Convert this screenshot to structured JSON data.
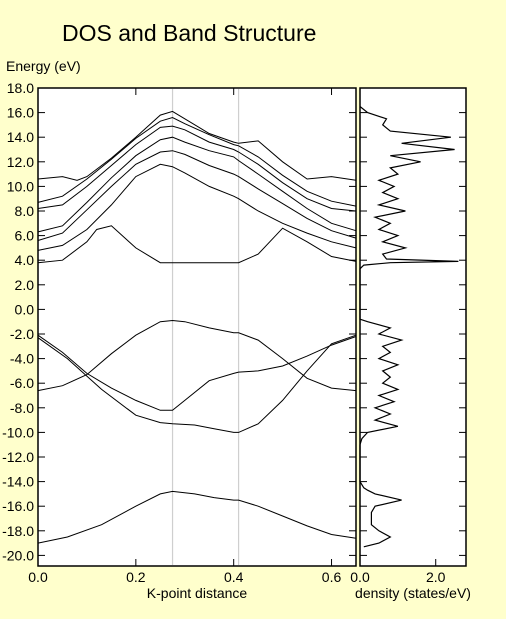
{
  "chart_data": [
    {
      "type": "line",
      "name": "band_structure",
      "title": "DOS and Band Structure",
      "ylabel": "Energy (eV)",
      "xlabel": "K-point distance",
      "xlim": [
        0.0,
        0.65
      ],
      "ylim": [
        -21.0,
        19.0
      ],
      "x_tick_labels": [
        "0.0",
        "0.2",
        "0.4",
        "0.6"
      ],
      "x_tick_values": [
        0.0,
        0.2,
        0.4,
        0.6
      ],
      "y_tick_labels": [
        "18.0",
        "16.0",
        "14.0",
        "12.0",
        "10.0",
        "8.0",
        "6.0",
        "4.0",
        "2.0",
        "0.0",
        "-2.0",
        "-4.0",
        "-6.0",
        "-8.0",
        "-10.0",
        "-12.0",
        "-14.0",
        "-16.0",
        "-18.0",
        "-20.0"
      ],
      "y_tick_values": [
        18,
        16,
        14,
        12,
        10,
        8,
        6,
        4,
        2,
        0,
        -2,
        -4,
        -6,
        -8,
        -10,
        -12,
        -14,
        -16,
        -18,
        -20
      ],
      "high_symmetry_x": [
        0.275,
        0.41
      ],
      "grid": false,
      "series": [
        {
          "x": [
            0,
            0.06,
            0.13,
            0.2,
            0.25,
            0.275,
            0.32,
            0.36,
            0.4,
            0.41,
            0.45,
            0.5,
            0.55,
            0.6,
            0.65
          ],
          "y": [
            -19,
            -18.5,
            -17.5,
            -16,
            -15,
            -14.8,
            -15,
            -15.3,
            -15.5,
            -15.5,
            -16,
            -16.8,
            -17.6,
            -18.3,
            -18.6
          ]
        },
        {
          "x": [
            0,
            0.06,
            0.13,
            0.2,
            0.25,
            0.275,
            0.32,
            0.36,
            0.4,
            0.41,
            0.45,
            0.5,
            0.55,
            0.6,
            0.65
          ],
          "y": [
            -2.3,
            -4,
            -6.5,
            -8.6,
            -9.2,
            -9.3,
            -9.4,
            -9.7,
            -10,
            -10,
            -9.3,
            -7.4,
            -5,
            -2.8,
            -2.1
          ]
        },
        {
          "x": [
            0,
            0.05,
            0.1,
            0.15,
            0.2,
            0.25,
            0.275,
            0.3,
            0.35,
            0.4,
            0.41,
            0.45,
            0.5,
            0.55,
            0.6,
            0.65
          ],
          "y": [
            -2.1,
            -3.5,
            -5.2,
            -6.4,
            -7.4,
            -8.2,
            -8.2,
            -7.4,
            -5.8,
            -5.2,
            -5.1,
            -5,
            -4.6,
            -3.8,
            -2.9,
            -2.2
          ]
        },
        {
          "x": [
            0,
            0.05,
            0.1,
            0.15,
            0.2,
            0.25,
            0.275,
            0.3,
            0.35,
            0.4,
            0.41,
            0.45,
            0.5,
            0.55,
            0.6,
            0.65
          ],
          "y": [
            -6.6,
            -6.2,
            -5.3,
            -3.6,
            -2.1,
            -1,
            -0.9,
            -1,
            -1.5,
            -1.9,
            -1.9,
            -2.5,
            -4,
            -5.6,
            -6.4,
            -6.6
          ]
        },
        {
          "x": [
            0,
            0.05,
            0.1,
            0.12,
            0.15,
            0.2,
            0.25,
            0.275,
            0.3,
            0.35,
            0.4,
            0.41,
            0.45,
            0.5,
            0.55,
            0.6,
            0.65
          ],
          "y": [
            3.8,
            4,
            5.5,
            6.5,
            6.8,
            5,
            3.8,
            3.8,
            3.8,
            3.8,
            3.8,
            3.8,
            4.5,
            6.6,
            5.5,
            4.3,
            3.9
          ]
        },
        {
          "x": [
            0,
            0.05,
            0.1,
            0.15,
            0.2,
            0.25,
            0.275,
            0.3,
            0.35,
            0.4,
            0.41,
            0.45,
            0.5,
            0.55,
            0.6,
            0.65
          ],
          "y": [
            4.8,
            5.2,
            6.5,
            8.5,
            10.8,
            11.8,
            11.6,
            11.1,
            10,
            9.2,
            9,
            8,
            7,
            6.2,
            5.5,
            5
          ]
        },
        {
          "x": [
            0,
            0.05,
            0.1,
            0.15,
            0.2,
            0.25,
            0.275,
            0.3,
            0.35,
            0.4,
            0.41,
            0.45,
            0.5,
            0.55,
            0.6,
            0.65
          ],
          "y": [
            5.6,
            6.2,
            8.1,
            10,
            11.8,
            12.8,
            12.9,
            12.6,
            11.7,
            11,
            10.8,
            9.8,
            8.6,
            7.4,
            6.4,
            5.8
          ]
        },
        {
          "x": [
            0,
            0.05,
            0.1,
            0.15,
            0.2,
            0.25,
            0.275,
            0.3,
            0.35,
            0.4,
            0.41,
            0.45,
            0.5,
            0.55,
            0.6,
            0.65
          ],
          "y": [
            6.3,
            6.8,
            8.7,
            10.7,
            12.5,
            13.8,
            14,
            13.6,
            12.9,
            12.4,
            12.1,
            11,
            9.6,
            8.2,
            7,
            6.4
          ]
        },
        {
          "x": [
            0,
            0.05,
            0.1,
            0.15,
            0.2,
            0.25,
            0.275,
            0.3,
            0.35,
            0.4,
            0.41,
            0.45,
            0.5,
            0.55,
            0.6,
            0.65
          ],
          "y": [
            8.2,
            8.5,
            10,
            11.7,
            13.4,
            14.8,
            14.9,
            14.6,
            13.6,
            13,
            12.8,
            11.8,
            10.3,
            9,
            8.2,
            8
          ]
        },
        {
          "x": [
            0,
            0.05,
            0.1,
            0.15,
            0.2,
            0.25,
            0.275,
            0.3,
            0.35,
            0.4,
            0.41,
            0.45,
            0.5,
            0.55,
            0.6,
            0.65
          ],
          "y": [
            8.7,
            9.2,
            10.6,
            12.2,
            13.9,
            15.3,
            15.6,
            15.1,
            14.2,
            13.4,
            13.3,
            12.4,
            10.9,
            9.6,
            8.8,
            8.4
          ]
        },
        {
          "x": [
            0,
            0.05,
            0.08,
            0.1,
            0.15,
            0.2,
            0.25,
            0.275,
            0.3,
            0.35,
            0.4,
            0.41,
            0.45,
            0.5,
            0.55,
            0.6,
            0.65
          ],
          "y": [
            10.6,
            10.8,
            10.5,
            10.8,
            12.3,
            14,
            15.8,
            16.1,
            15.5,
            14.3,
            13.6,
            13.5,
            13.7,
            12,
            10.6,
            10.8,
            10.5
          ]
        }
      ]
    },
    {
      "type": "line",
      "name": "dos",
      "xlabel": "density (states/eV)",
      "xlim": [
        0.0,
        2.8
      ],
      "ylim": [
        -21.0,
        19.0
      ],
      "x_tick_labels": [
        "0.0",
        "2.0"
      ],
      "x_tick_values": [
        0.0,
        2.0
      ],
      "grid": false,
      "energy": [
        -19.3,
        -19.0,
        -18.5,
        -18.0,
        -17.5,
        -17.0,
        -16.5,
        -16.0,
        -15.5,
        -15.0,
        -14.7,
        -14.5,
        -14.0,
        -13.5,
        -13.0,
        -12.0,
        -11.0,
        -10.5,
        -10.0,
        -9.5,
        -9.0,
        -8.5,
        -8.0,
        -7.5,
        -7.0,
        -6.5,
        -6.0,
        -5.5,
        -5.0,
        -4.5,
        -4.0,
        -3.5,
        -3.0,
        -2.5,
        -2.0,
        -1.5,
        -1.0,
        -0.8,
        3.3,
        3.6,
        3.8,
        3.9,
        4.1,
        4.5,
        5.0,
        5.5,
        6.0,
        6.5,
        7.0,
        7.5,
        8.0,
        8.5,
        9.0,
        9.5,
        10.0,
        10.5,
        11.0,
        11.5,
        12.0,
        12.5,
        13.0,
        13.5,
        14.0,
        14.5,
        15.0,
        15.5,
        16.0,
        16.5
      ],
      "density": [
        0.1,
        0.5,
        0.8,
        0.5,
        0.3,
        0.3,
        0.3,
        0.4,
        1.1,
        0.4,
        0.2,
        0.1,
        0.0,
        0.0,
        0.0,
        0.0,
        0.0,
        0.05,
        0.2,
        1.0,
        0.4,
        0.8,
        0.4,
        0.9,
        0.5,
        1.0,
        0.6,
        0.8,
        0.6,
        1.0,
        0.5,
        0.8,
        0.6,
        1.1,
        0.5,
        0.8,
        0.2,
        0.0,
        0.0,
        0.1,
        0.8,
        2.6,
        0.7,
        0.6,
        1.2,
        0.6,
        1.0,
        0.5,
        0.8,
        0.4,
        1.2,
        0.5,
        1.0,
        0.6,
        0.9,
        0.5,
        1.0,
        0.8,
        1.6,
        0.8,
        2.5,
        1.1,
        2.4,
        0.8,
        0.6,
        0.7,
        0.2,
        0.0
      ]
    }
  ]
}
